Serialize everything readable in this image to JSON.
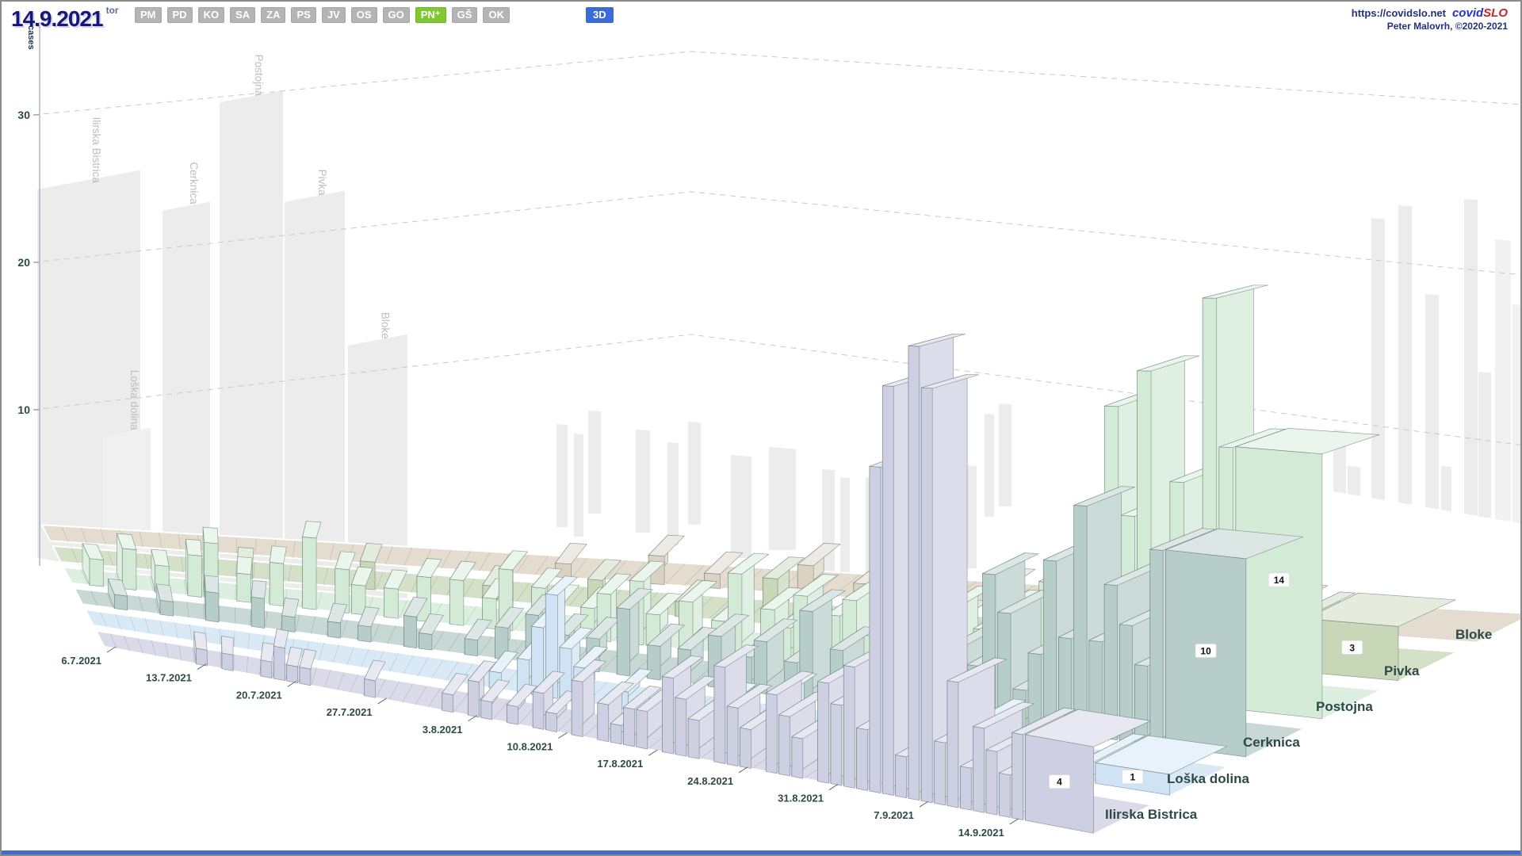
{
  "header": {
    "date": "14.9.2021",
    "weekday": "tor",
    "region_buttons": [
      "PM",
      "PD",
      "KO",
      "SA",
      "ZA",
      "PS",
      "JV",
      "OS",
      "GO",
      "PN⁺",
      "GŠ",
      "OK"
    ],
    "active_region_button": "PN⁺",
    "view_mode_button": "3D",
    "site_url": "https://covidslo.net",
    "brand_covid": "covid",
    "brand_slo": "SLO",
    "credit": "Peter Malovrh, ©2020-2021"
  },
  "axis": {
    "y_label": "cases",
    "y_ticks": [
      10,
      20,
      30
    ],
    "x_ticks": [
      "6.7.2021",
      "13.7.2021",
      "20.7.2021",
      "27.7.2021",
      "3.8.2021",
      "10.8.2021",
      "17.8.2021",
      "24.8.2021",
      "31.8.2021",
      "7.9.2021",
      "14.9.2021"
    ]
  },
  "chart_data": {
    "type": "bar",
    "projection": "3d",
    "ylabel": "cases",
    "ylim": [
      0,
      35
    ],
    "grid": "dashed-back-wall",
    "legend_position": "none",
    "x_start": "6.7.2021",
    "x_end": "14.9.2021",
    "x_step_days": 1,
    "x_tick_labels": [
      "6.7.2021",
      "13.7.2021",
      "20.7.2021",
      "27.7.2021",
      "3.8.2021",
      "10.8.2021",
      "17.8.2021",
      "24.8.2021",
      "31.8.2021",
      "7.9.2021",
      "14.9.2021"
    ],
    "series": [
      {
        "name": "Ilirska Bistrica",
        "color": "#cfcfe3",
        "last_day_label": 4,
        "values": [
          0,
          0,
          0,
          0,
          0,
          0,
          0,
          1,
          0,
          1,
          0,
          0,
          1,
          2,
          1,
          1,
          0,
          0,
          0,
          0,
          1,
          0,
          0,
          0,
          0,
          0,
          1,
          0,
          2,
          1,
          0,
          1,
          0,
          2,
          1,
          0,
          3,
          0,
          2,
          1,
          2,
          2,
          0,
          4,
          3,
          2,
          0,
          5,
          3,
          2,
          0,
          4,
          3,
          2,
          0,
          5,
          4,
          6,
          3,
          16,
          20,
          2,
          22,
          20,
          3,
          6,
          2,
          4,
          3,
          2,
          4
        ]
      },
      {
        "name": "Loška dolina",
        "color": "#cfe3f4",
        "last_day_label": 1,
        "values": [
          0,
          0,
          0,
          0,
          0,
          0,
          0,
          0,
          0,
          0,
          0,
          0,
          0,
          0,
          0,
          0,
          0,
          0,
          0,
          0,
          0,
          0,
          0,
          0,
          0,
          0,
          0,
          0,
          1,
          0,
          2,
          4,
          6,
          3,
          2,
          0,
          0,
          1,
          0,
          0,
          0,
          0,
          0,
          0,
          1,
          0,
          0,
          0,
          2,
          0,
          0,
          0,
          1,
          0,
          0,
          0,
          1,
          0,
          0,
          0,
          1,
          0,
          2,
          0,
          0,
          0,
          1,
          0,
          0,
          0,
          1
        ]
      },
      {
        "name": "Cerknica",
        "color": "#b7cdc9",
        "last_day_label": 10,
        "values": [
          0,
          0,
          1,
          0,
          0,
          1,
          0,
          0,
          2,
          0,
          0,
          2,
          0,
          1,
          0,
          0,
          1,
          0,
          1,
          0,
          0,
          2,
          1,
          0,
          0,
          1,
          0,
          2,
          0,
          3,
          0,
          2,
          0,
          2,
          0,
          4,
          0,
          2,
          0,
          2,
          0,
          3,
          0,
          2,
          3,
          0,
          2,
          5,
          0,
          3,
          2,
          0,
          3,
          4,
          0,
          3,
          2,
          4,
          3,
          8,
          6,
          2,
          4,
          9,
          5,
          12,
          5,
          8,
          6,
          4,
          10
        ]
      },
      {
        "name": "Postojna",
        "color": "#d3ead7",
        "last_day_label": 14,
        "values": [
          0,
          2,
          0,
          3,
          0,
          2,
          0,
          3,
          4,
          0,
          2,
          0,
          3,
          0,
          5,
          0,
          3,
          2,
          0,
          2,
          0,
          3,
          0,
          3,
          0,
          2,
          4,
          0,
          3,
          2,
          0,
          2,
          3,
          0,
          4,
          2,
          0,
          3,
          0,
          2,
          5,
          0,
          3,
          2,
          4,
          0,
          3,
          4,
          2,
          0,
          5,
          3,
          0,
          4,
          2,
          3,
          4,
          2,
          4,
          6,
          3,
          8,
          5,
          16,
          10,
          18,
          8,
          12,
          6,
          22,
          14
        ]
      },
      {
        "name": "Pivka",
        "color": "#c9d7b9",
        "last_day_label": 3,
        "values": [
          0,
          0,
          0,
          0,
          0,
          0,
          0,
          0,
          0,
          0,
          1,
          0,
          0,
          0,
          0,
          0,
          0,
          2,
          0,
          0,
          0,
          0,
          0,
          0,
          1,
          0,
          0,
          0,
          0,
          0,
          2,
          0,
          0,
          0,
          0,
          1,
          0,
          0,
          0,
          0,
          3,
          0,
          0,
          0,
          0,
          0,
          2,
          0,
          0,
          0,
          1,
          0,
          0,
          0,
          0,
          2,
          0,
          0,
          0,
          0,
          3,
          0,
          2,
          0,
          1,
          5,
          0,
          3,
          2,
          0,
          3
        ]
      },
      {
        "name": "Bloke",
        "color": "#dcd2c2",
        "last_day_label": null,
        "values": [
          0,
          0,
          0,
          0,
          0,
          0,
          0,
          0,
          0,
          0,
          0,
          0,
          0,
          0,
          0,
          0,
          0,
          0,
          0,
          0,
          0,
          0,
          0,
          0,
          0,
          0,
          0,
          1,
          0,
          0,
          0,
          0,
          2,
          0,
          0,
          1,
          0,
          0,
          0,
          0,
          2,
          0,
          0,
          1,
          0,
          0,
          0,
          0,
          0,
          0,
          1,
          0,
          0,
          0,
          0,
          0,
          2,
          0,
          0,
          0,
          0,
          0,
          1,
          0,
          0,
          1,
          0,
          0,
          0,
          0,
          0
        ]
      }
    ],
    "background_summary_bars": [
      {
        "name": "Ilirska Bistrica",
        "value": 25
      },
      {
        "name": "Loška dolina",
        "value": 9
      },
      {
        "name": "Cerknica",
        "value": 25
      },
      {
        "name": "Postojna",
        "value": 33
      },
      {
        "name": "Pivka",
        "value": 27
      },
      {
        "name": "Bloke",
        "value": 18
      }
    ]
  },
  "colors": {
    "accent_view_button": "#3a6bd9",
    "active_region_button": "#7ec832",
    "brand_blue": "#2233cc",
    "brand_red": "#cc2222",
    "axis_text": "#2d4a47",
    "ghost_gray": "#ececec",
    "bottom_bar": "#4169d0"
  }
}
